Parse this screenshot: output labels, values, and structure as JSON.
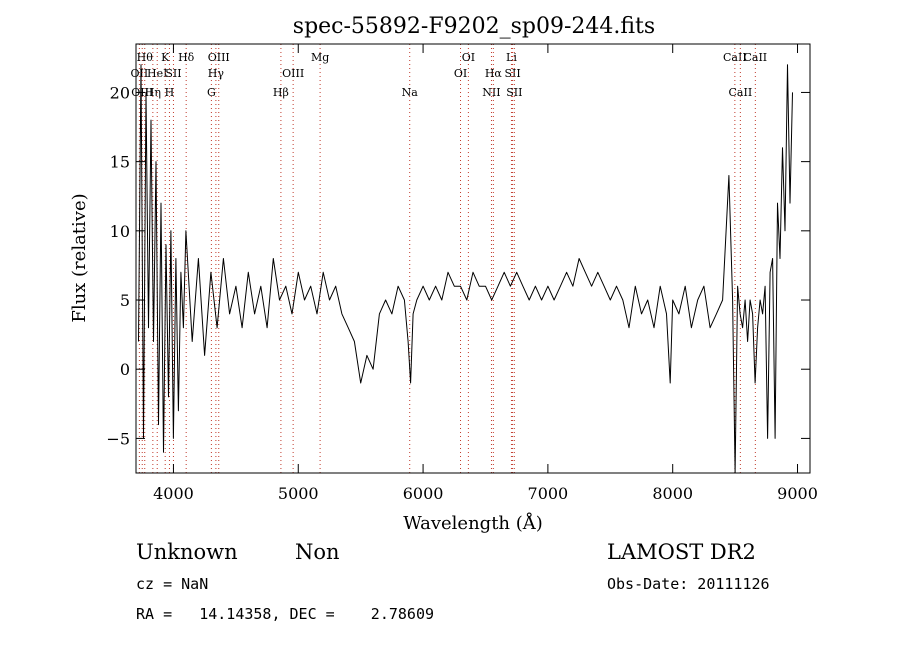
{
  "chart_data": {
    "type": "line",
    "title": "spec-55892-F9202_sp09-244.fits",
    "xlabel": "Wavelength (Å)",
    "ylabel": "Flux (relative)",
    "xlim": [
      3700,
      9100
    ],
    "ylim": [
      -7.5,
      23.5
    ],
    "xticks": [
      4000,
      5000,
      6000,
      7000,
      8000,
      9000
    ],
    "yticks": [
      -5,
      0,
      5,
      10,
      15,
      20
    ],
    "grid": false,
    "series": [
      {
        "x": [
          3720,
          3740,
          3760,
          3780,
          3800,
          3820,
          3840,
          3860,
          3880,
          3900,
          3920,
          3940,
          3960,
          3980,
          4000,
          4020,
          4040,
          4060,
          4080,
          4100,
          4150,
          4200,
          4250,
          4300,
          4350,
          4400,
          4450,
          4500,
          4550,
          4600,
          4650,
          4700,
          4750,
          4800,
          4850,
          4900,
          4950,
          5000,
          5050,
          5100,
          5150,
          5200,
          5250,
          5300,
          5350,
          5400,
          5450,
          5500,
          5550,
          5600,
          5650,
          5700,
          5750,
          5800,
          5850,
          5880,
          5900,
          5920,
          5950,
          6000,
          6050,
          6100,
          6150,
          6200,
          6250,
          6300,
          6350,
          6400,
          6450,
          6500,
          6550,
          6600,
          6650,
          6700,
          6750,
          6800,
          6850,
          6900,
          6950,
          7000,
          7050,
          7100,
          7150,
          7200,
          7250,
          7300,
          7350,
          7400,
          7450,
          7500,
          7550,
          7600,
          7650,
          7700,
          7750,
          7800,
          7850,
          7900,
          7950,
          7980,
          8000,
          8050,
          8100,
          8150,
          8200,
          8250,
          8300,
          8350,
          8400,
          8450,
          8480,
          8500,
          8520,
          8540,
          8560,
          8580,
          8600,
          8620,
          8640,
          8660,
          8680,
          8700,
          8720,
          8740,
          8760,
          8780,
          8800,
          8820,
          8840,
          8860,
          8880,
          8900,
          8920,
          8940,
          8960
        ],
        "y": [
          2,
          22,
          -5,
          20,
          3,
          18,
          2,
          15,
          -4,
          12,
          -6,
          9,
          -2,
          10,
          -5,
          8,
          -3,
          7,
          3,
          10,
          2,
          8,
          1,
          7,
          3,
          8,
          4,
          6,
          3,
          7,
          4,
          6,
          3,
          8,
          5,
          6,
          4,
          7,
          5,
          6,
          4,
          7,
          5,
          6,
          4,
          3,
          2,
          -1,
          1,
          0,
          4,
          5,
          4,
          6,
          5,
          2,
          -1,
          4,
          5,
          6,
          5,
          6,
          5,
          7,
          6,
          6,
          5,
          7,
          6,
          6,
          5,
          6,
          7,
          6,
          7,
          6,
          5,
          6,
          5,
          6,
          5,
          6,
          7,
          6,
          8,
          7,
          6,
          7,
          6,
          5,
          6,
          5,
          3,
          6,
          4,
          5,
          3,
          6,
          4,
          -1,
          5,
          4,
          6,
          3,
          5,
          6,
          3,
          4,
          5,
          14,
          5,
          -8,
          6,
          4,
          3,
          5,
          2,
          5,
          4,
          -1,
          3,
          5,
          4,
          6,
          -5,
          7,
          8,
          -5,
          12,
          8,
          16,
          10,
          22,
          12,
          20
        ],
        "line_color": "#000000"
      }
    ],
    "spectral_lines": [
      {
        "wavelength": 3727,
        "label": "OII",
        "row": 2,
        "color": "#c0392b"
      },
      {
        "wavelength": 3750,
        "label": "OIII",
        "row": 3,
        "color": "#c0392b"
      },
      {
        "wavelength": 3770,
        "label": "Hθ",
        "row": 1,
        "color": "#c0392b"
      },
      {
        "wavelength": 3835,
        "label": "Hη",
        "row": 3,
        "color": "#c0392b"
      },
      {
        "wavelength": 3870,
        "label": "HeI",
        "row": 2,
        "color": "#c0392b"
      },
      {
        "wavelength": 3934,
        "label": "K",
        "row": 1,
        "color": "#c0392b"
      },
      {
        "wavelength": 3968,
        "label": "H",
        "row": 3,
        "color": "#c0392b"
      },
      {
        "wavelength": 4000,
        "label": "SII",
        "row": 2,
        "color": "#c0392b"
      },
      {
        "wavelength": 4102,
        "label": "Hδ",
        "row": 1,
        "color": "#c0392b"
      },
      {
        "wavelength": 4304,
        "label": "G",
        "row": 3,
        "color": "#c0392b"
      },
      {
        "wavelength": 4340,
        "label": "Hγ",
        "row": 2,
        "color": "#c0392b"
      },
      {
        "wavelength": 4363,
        "label": "OIII",
        "row": 1,
        "color": "#c0392b"
      },
      {
        "wavelength": 4861,
        "label": "Hβ",
        "row": 3,
        "color": "#c0392b"
      },
      {
        "wavelength": 4959,
        "label": "OIII",
        "row": 2,
        "color": "#c0392b"
      },
      {
        "wavelength": 5175,
        "label": "Mg",
        "row": 1,
        "color": "#c0392b"
      },
      {
        "wavelength": 5893,
        "label": "Na",
        "row": 3,
        "color": "#c0392b"
      },
      {
        "wavelength": 6300,
        "label": "OI",
        "row": 2,
        "color": "#c0392b"
      },
      {
        "wavelength": 6363,
        "label": "OI",
        "row": 1,
        "color": "#c0392b"
      },
      {
        "wavelength": 6548,
        "label": "NII",
        "row": 3,
        "color": "#c0392b"
      },
      {
        "wavelength": 6563,
        "label": "Hα",
        "row": 2,
        "color": "#c0392b"
      },
      {
        "wavelength": 6708,
        "label": "Li",
        "row": 1,
        "color": "#c0392b"
      },
      {
        "wavelength": 6717,
        "label": "SII",
        "row": 2,
        "color": "#c0392b"
      },
      {
        "wavelength": 6731,
        "label": "SII",
        "row": 3,
        "color": "#c0392b"
      },
      {
        "wavelength": 8498,
        "label": "CaII",
        "row": 1,
        "color": "#c0392b"
      },
      {
        "wavelength": 8542,
        "label": "CaII",
        "row": 3,
        "color": "#c0392b"
      },
      {
        "wavelength": 8662,
        "label": "CaII",
        "row": 1,
        "color": "#c0392b"
      }
    ]
  },
  "info": {
    "class": "Unknown",
    "subclass": "Non",
    "cz": "cz = NaN",
    "radec": "RA =   14.14358, DEC =    2.78609",
    "survey": "LAMOST DR2",
    "obsdate": "Obs-Date: 20111126"
  }
}
